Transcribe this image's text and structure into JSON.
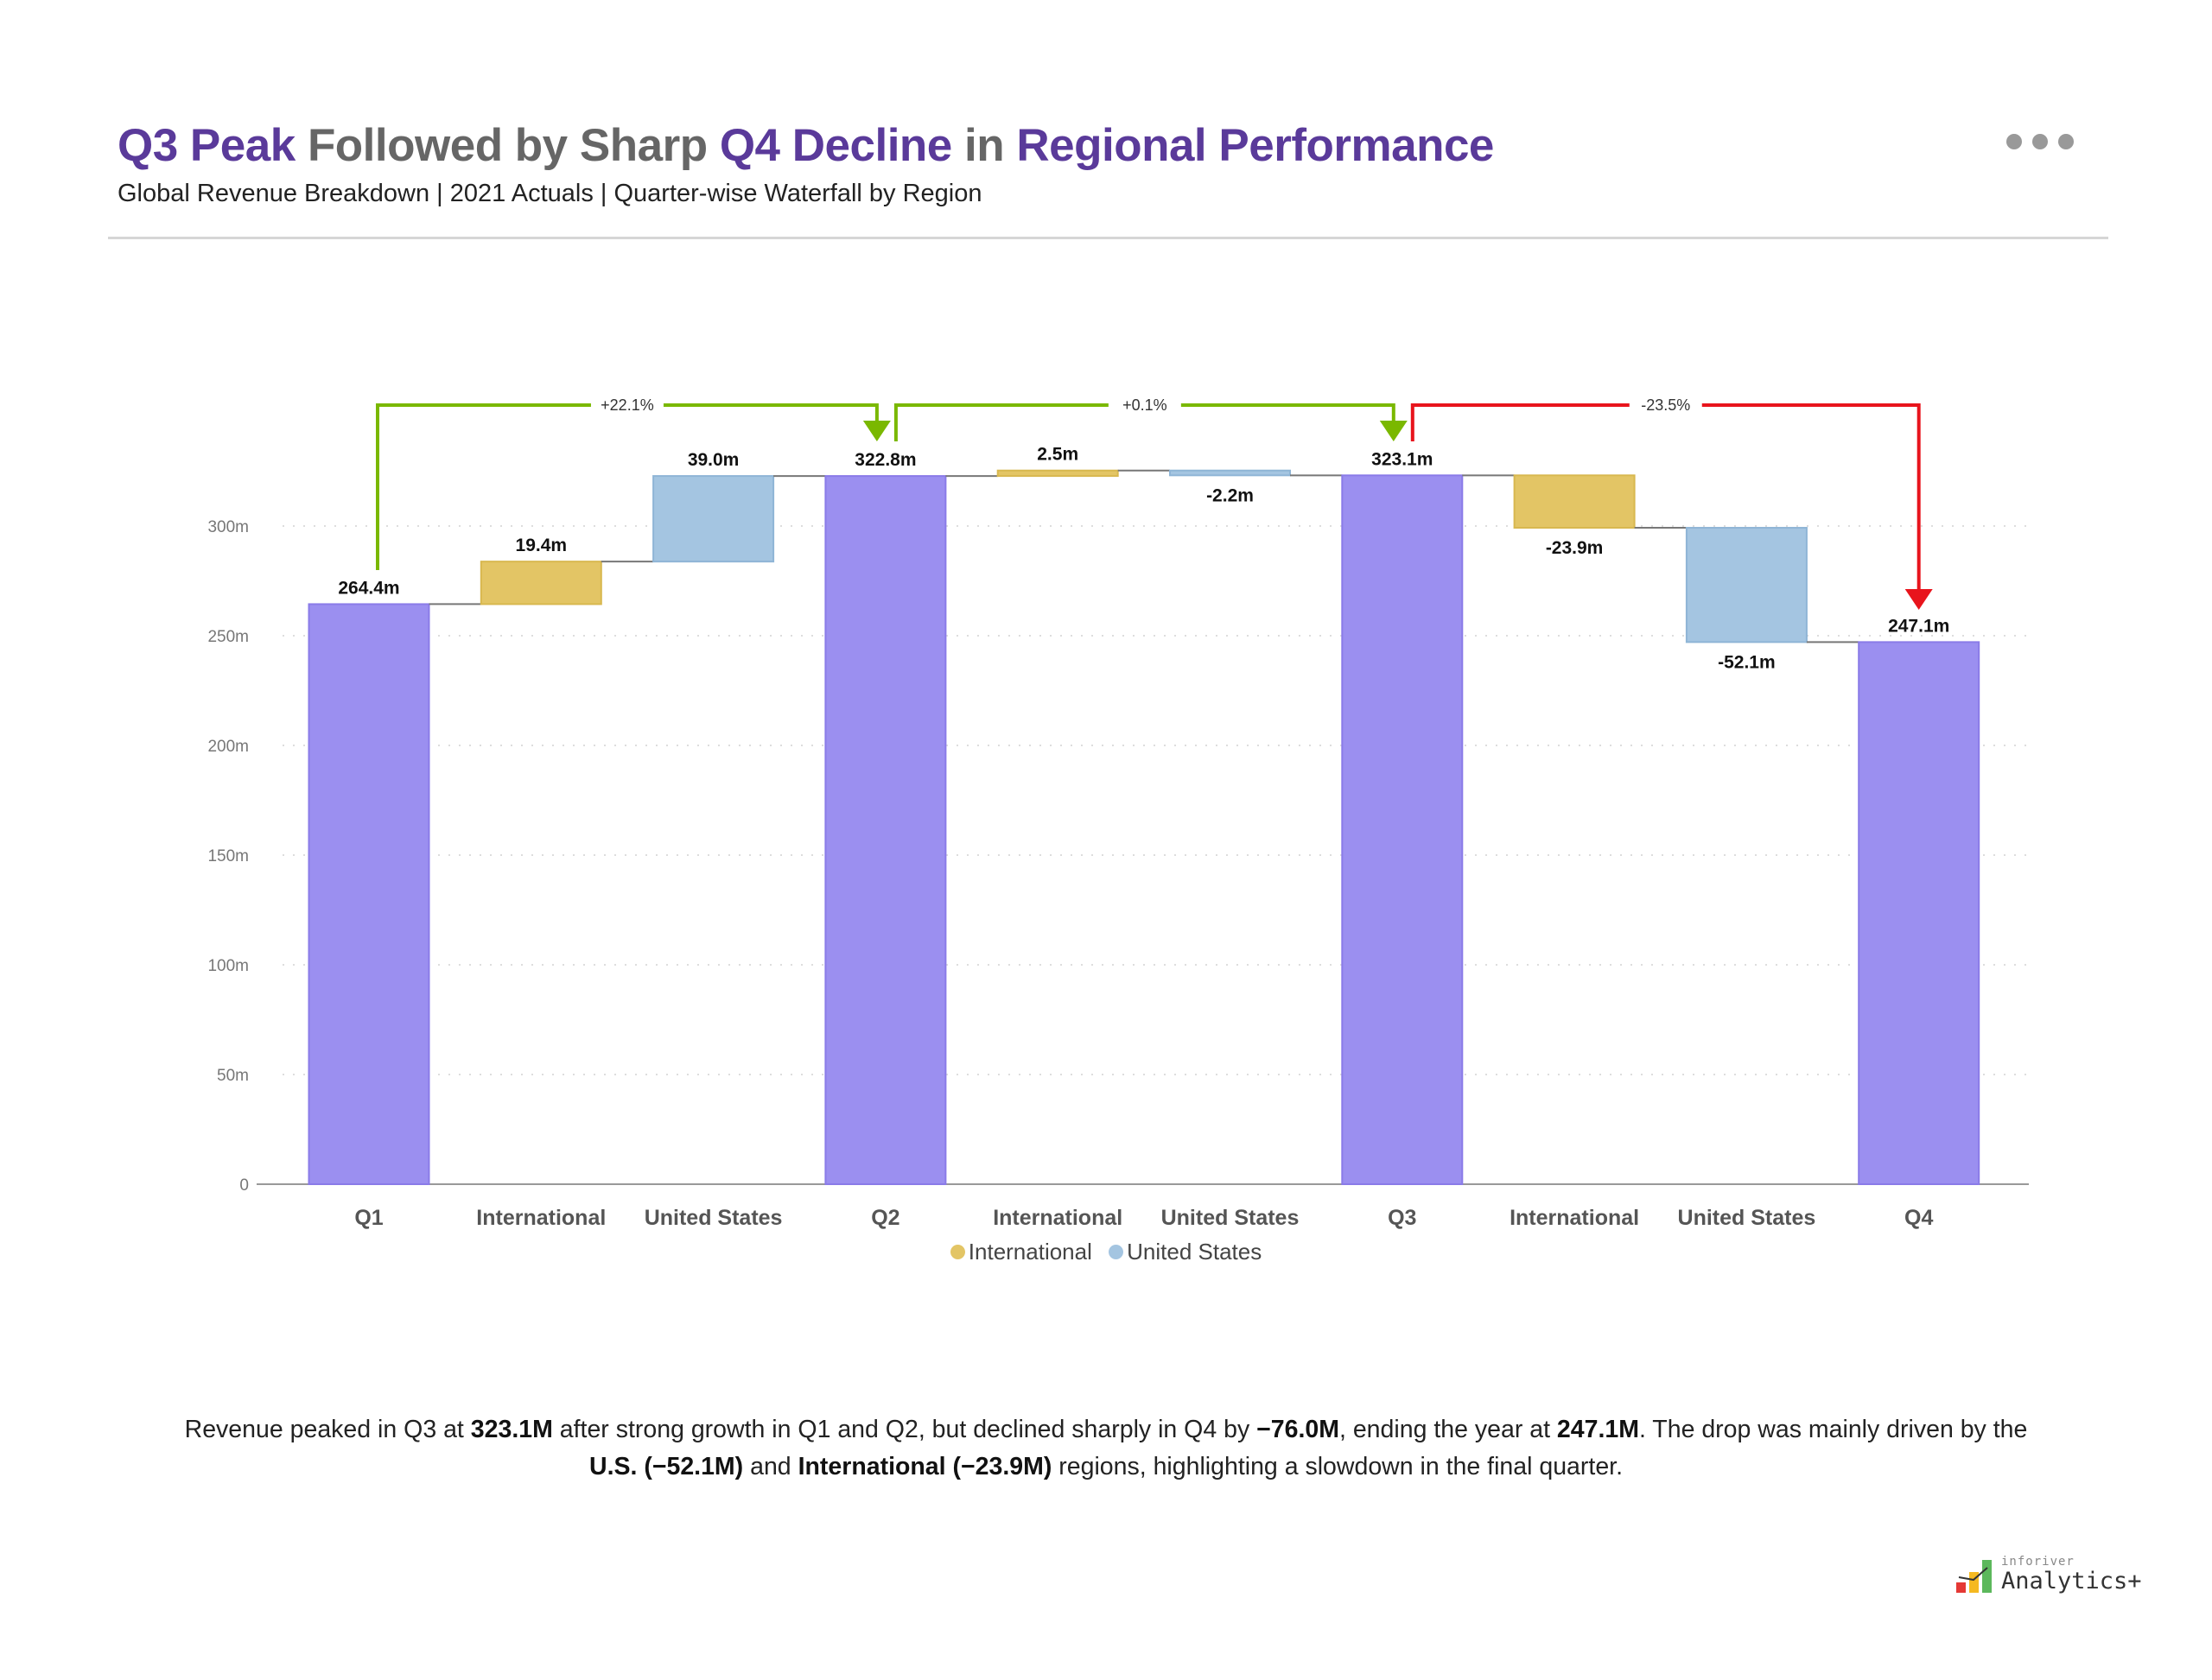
{
  "header": {
    "title_parts": [
      {
        "text": "Q3 Peak ",
        "style": "accent"
      },
      {
        "text": "Followed by Sharp ",
        "style": "gray"
      },
      {
        "text": "Q4 Decline ",
        "style": "accent"
      },
      {
        "text": "in ",
        "style": "gray"
      },
      {
        "text": "Regional Performance",
        "style": "accent"
      }
    ],
    "subtitle": "Global Revenue Breakdown | 2021 Actuals | Quarter-wise Waterfall by Region",
    "more_icon": "ellipsis-icon"
  },
  "colors": {
    "accent": "#5a3a9a",
    "total": "#9b8ff0",
    "international": "#e3c565",
    "united_states": "#a4c5e1",
    "increase": "#7ab800",
    "decrease": "#e8141c"
  },
  "chart_data": {
    "type": "waterfall",
    "categories": [
      "Q1",
      "International",
      "United States",
      "Q2",
      "International",
      "United States",
      "Q3",
      "International",
      "United States",
      "Q4"
    ],
    "kinds": [
      "total",
      "international",
      "united_states",
      "total",
      "international",
      "united_states",
      "total",
      "international",
      "united_states",
      "total"
    ],
    "values": [
      264.4,
      19.4,
      39.0,
      322.8,
      2.5,
      -2.2,
      323.1,
      -23.9,
      -52.1,
      247.1
    ],
    "data_labels": [
      "264.4m",
      "19.4m",
      "39.0m",
      "322.8m",
      "2.5m",
      "-2.2m",
      "323.1m",
      "-23.9m",
      "-52.1m",
      "247.1m"
    ],
    "ylim": [
      0,
      300
    ],
    "yticks": [
      0,
      50,
      100,
      150,
      200,
      250,
      300
    ],
    "ytick_labels": [
      "0",
      "50m",
      "100m",
      "150m",
      "200m",
      "250m",
      "300m"
    ],
    "grid": true,
    "legend": {
      "position": "bottom",
      "entries": [
        "International",
        "United States"
      ]
    },
    "variance_brackets": [
      {
        "from": "Q1",
        "to": "Q2",
        "label": "+22.1%",
        "direction": "up"
      },
      {
        "from": "Q2",
        "to": "Q3",
        "label": "+0.1%",
        "direction": "up"
      },
      {
        "from": "Q3",
        "to": "Q4",
        "label": "-23.5%",
        "direction": "down"
      }
    ]
  },
  "description": {
    "parts": [
      {
        "text": "Revenue peaked in Q3 at ",
        "bold": false
      },
      {
        "text": "323.1M",
        "bold": true
      },
      {
        "text": " after strong growth in Q1 and Q2, but declined sharply in Q4 by ",
        "bold": false
      },
      {
        "text": "−76.0M",
        "bold": true
      },
      {
        "text": ", ending the year at ",
        "bold": false
      },
      {
        "text": "247.1M",
        "bold": true
      },
      {
        "text": ". The drop was mainly driven by the ",
        "bold": false
      },
      {
        "text": "U.S. (−52.1M)",
        "bold": true
      },
      {
        "text": " and ",
        "bold": false
      },
      {
        "text": "International (−23.9M)",
        "bold": true
      },
      {
        "text": " regions, highlighting a slowdown in the final quarter.",
        "bold": false
      }
    ]
  },
  "logo": {
    "small": "inforiver",
    "big": "Analytics+"
  }
}
